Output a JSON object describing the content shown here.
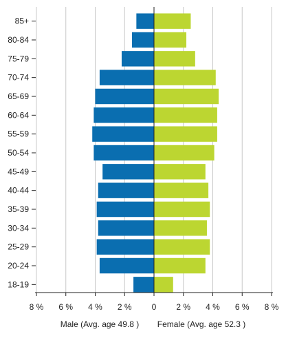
{
  "chart_data": {
    "type": "bar",
    "orientation": "horizontal",
    "layout": "population-pyramid",
    "categories": [
      "85+",
      "80-84",
      "75-79",
      "70-74",
      "65-69",
      "60-64",
      "55-59",
      "50-54",
      "45-49",
      "40-44",
      "35-39",
      "30-34",
      "25-29",
      "20-24",
      "18-19"
    ],
    "series": [
      {
        "name": "Male (Avg. age 49.8 )",
        "side": "left",
        "color": "#0a6eb0",
        "values": [
          1.2,
          1.5,
          2.2,
          3.7,
          4.0,
          4.1,
          4.2,
          4.1,
          3.5,
          3.8,
          3.9,
          3.8,
          3.9,
          3.7,
          1.4
        ]
      },
      {
        "name": "Female (Avg. age 52.3 )",
        "side": "right",
        "color": "#bcd631",
        "values": [
          2.5,
          2.2,
          2.8,
          4.2,
          4.4,
          4.3,
          4.3,
          4.1,
          3.5,
          3.7,
          3.8,
          3.6,
          3.8,
          3.5,
          1.3
        ]
      }
    ],
    "x_ticks": [
      "8 %",
      "6 %",
      "4 %",
      "2 %",
      "0",
      "2 %",
      "4 %",
      "6 %",
      "8 %"
    ],
    "xlim": [
      -8,
      8
    ],
    "grid": true
  }
}
